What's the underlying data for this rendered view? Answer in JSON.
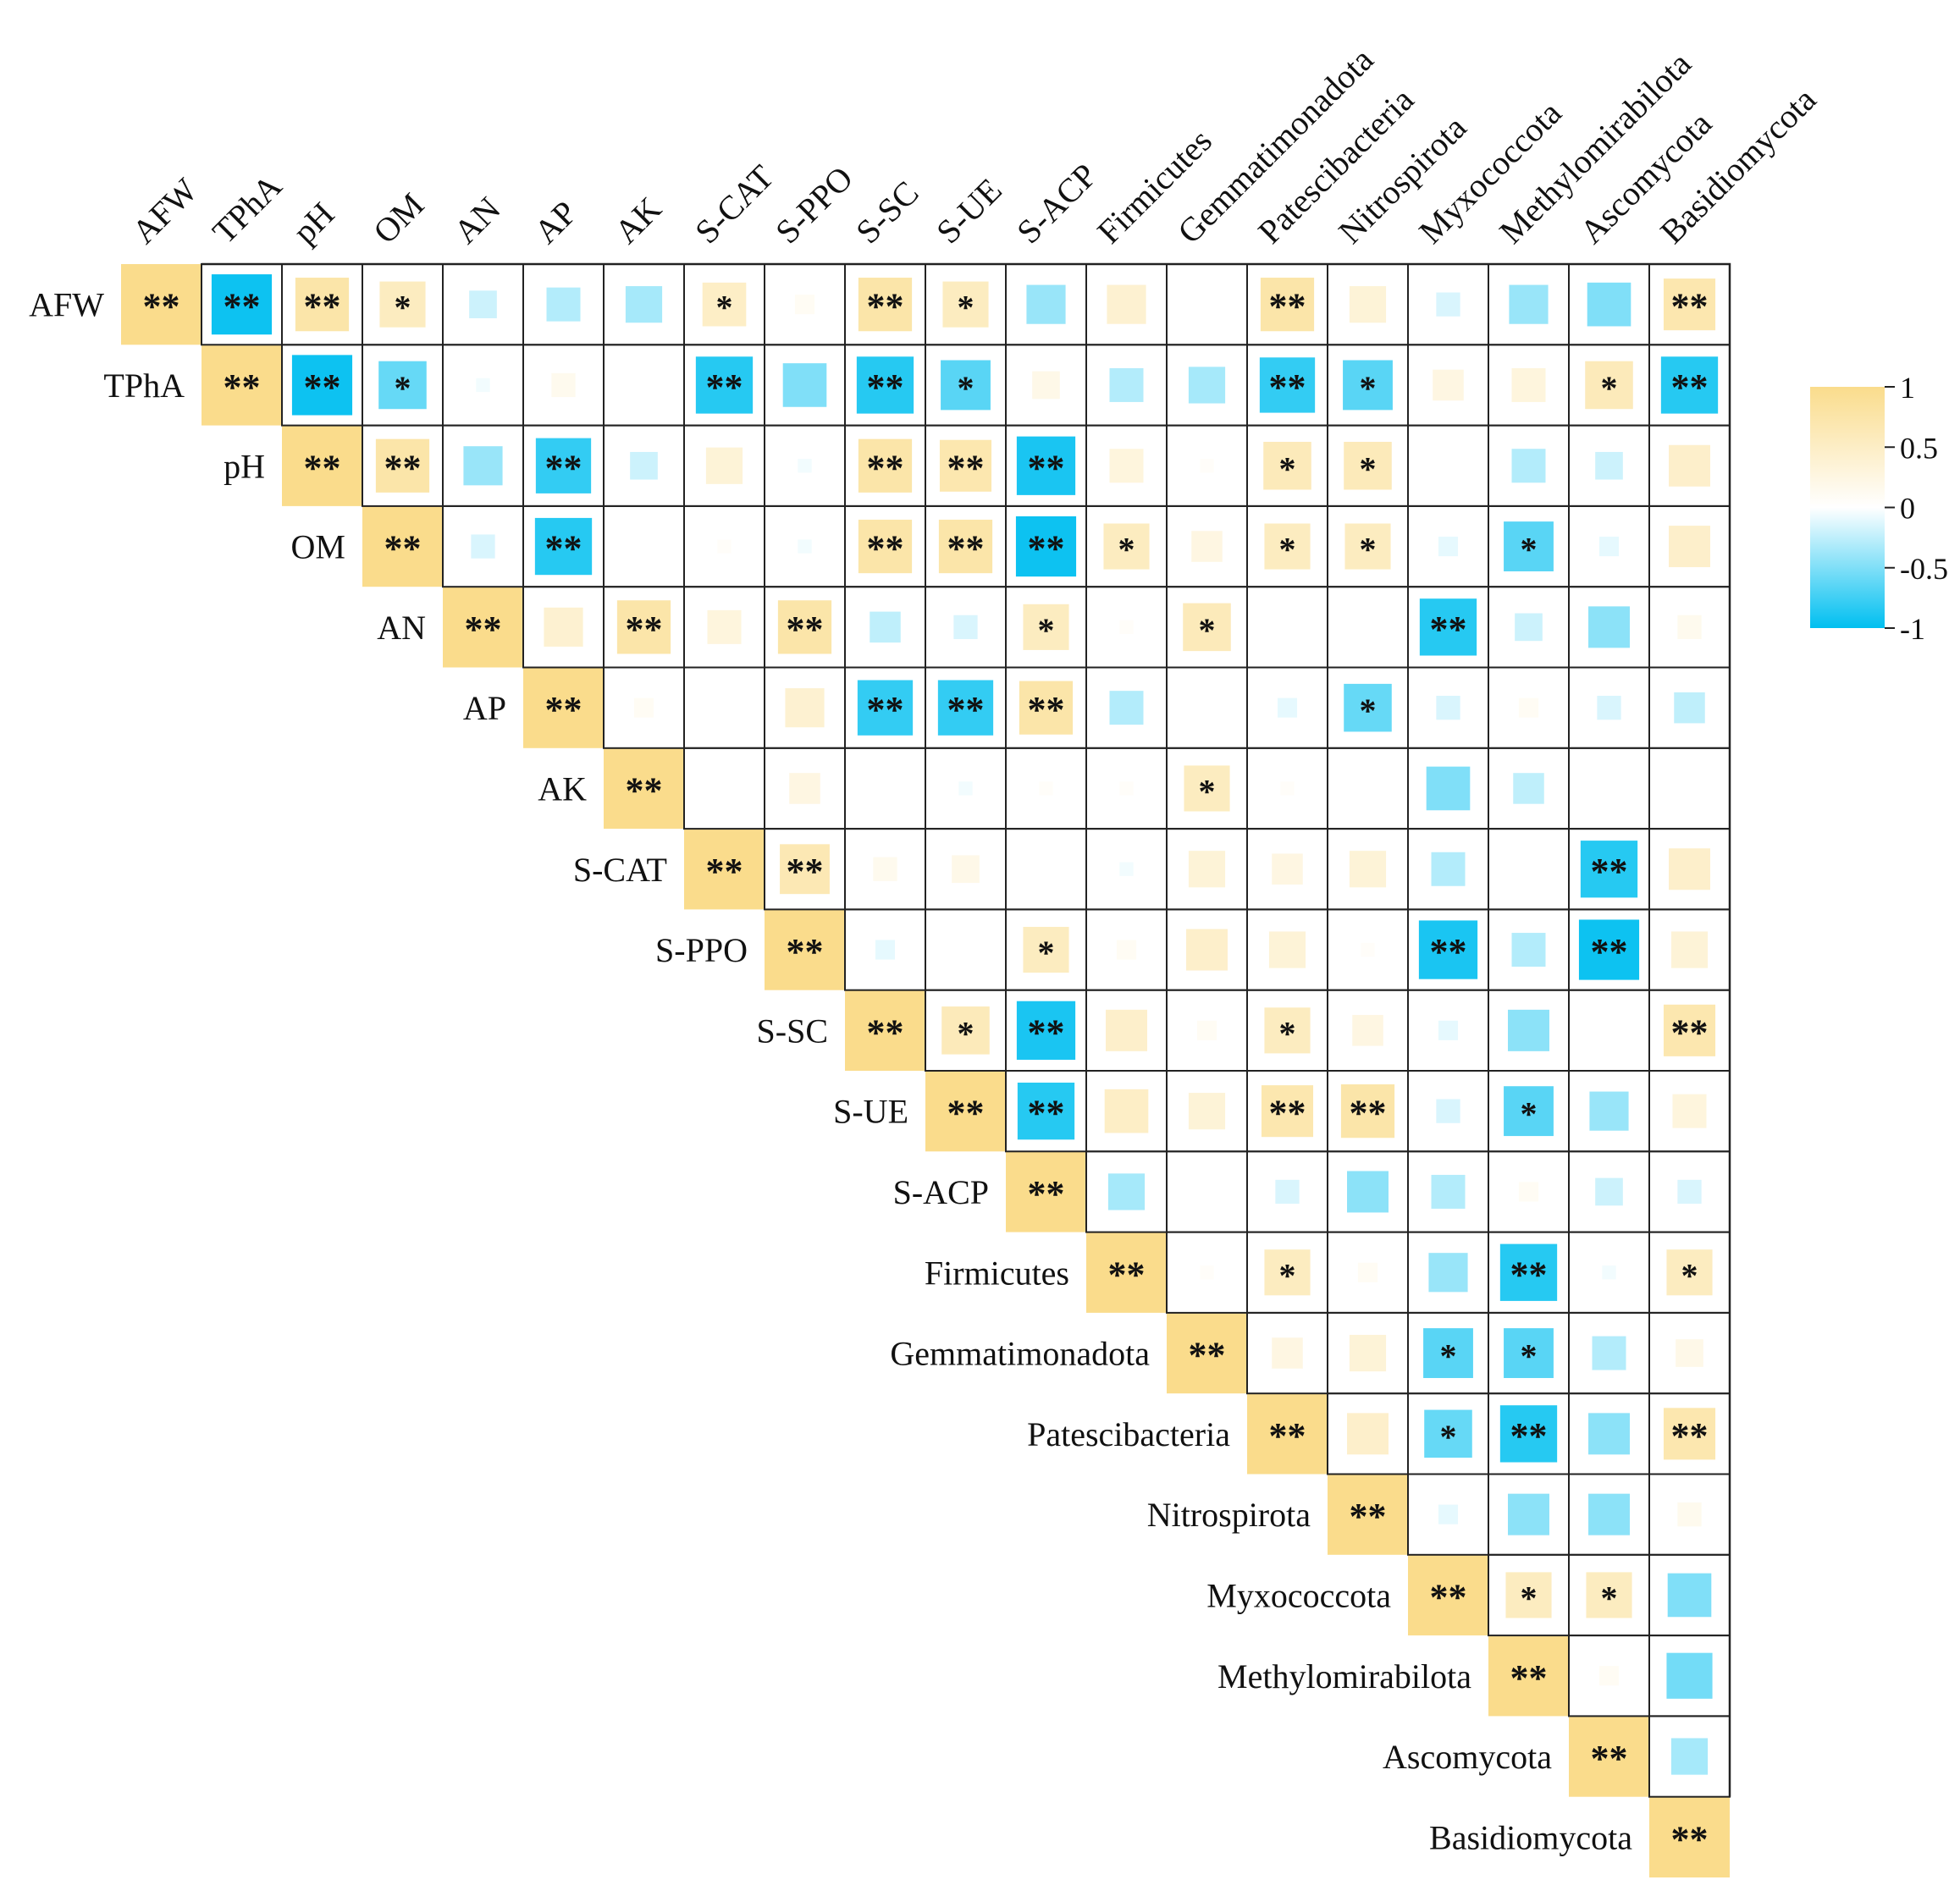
{
  "chart_data": {
    "type": "heatmap",
    "variant": "upper-triangle-correlation",
    "variables": [
      "AFW",
      "TPhA",
      "pH",
      "OM",
      "AN",
      "AP",
      "AK",
      "S-CAT",
      "S-PPO",
      "S-SC",
      "S-UE",
      "S-ACP",
      "Firmicutes",
      "Gemmatimonadota",
      "Patescibacteria",
      "Nitrospirota",
      "Myxococcota",
      "Methylomirabilota",
      "Ascomycota",
      "Basidiomycota"
    ],
    "cells": [
      [
        [
          "AFW",
          1,
          "**"
        ],
        [
          "TPhA",
          -0.95,
          "**"
        ],
        [
          "pH",
          0.75,
          "**"
        ],
        [
          "OM",
          0.55,
          "*"
        ],
        [
          "AN",
          -0.2,
          ""
        ],
        [
          "AP",
          -0.3,
          ""
        ],
        [
          "AK",
          -0.35,
          ""
        ],
        [
          "S-CAT",
          0.5,
          "*"
        ],
        [
          "S-PPO",
          0.1,
          ""
        ],
        [
          "S-SC",
          0.75,
          "**"
        ],
        [
          "S-UE",
          0.55,
          "*"
        ],
        [
          "S-ACP",
          -0.4,
          ""
        ],
        [
          "Firmicutes",
          0.4,
          ""
        ],
        [
          "Gemmatimonadota",
          0,
          ""
        ],
        [
          "Patescibacteria",
          0.75,
          "**"
        ],
        [
          "Nitrospirota",
          0.35,
          ""
        ],
        [
          "Myxococcota",
          -0.15,
          ""
        ],
        [
          "Methylomirabilota",
          -0.4,
          ""
        ],
        [
          "Ascomycota",
          -0.5,
          ""
        ],
        [
          "Basidiomycota",
          0.7,
          "**"
        ]
      ],
      [
        [
          "TPhA",
          1,
          "**"
        ],
        [
          "pH",
          -0.95,
          "**"
        ],
        [
          "OM",
          -0.6,
          "*"
        ],
        [
          "AN",
          -0.05,
          ""
        ],
        [
          "AP",
          0.15,
          ""
        ],
        [
          "AK",
          0,
          ""
        ],
        [
          "S-CAT",
          -0.85,
          "**"
        ],
        [
          "S-PPO",
          -0.5,
          ""
        ],
        [
          "S-SC",
          -0.85,
          "**"
        ],
        [
          "S-UE",
          -0.65,
          "*"
        ],
        [
          "S-ACP",
          0.2,
          ""
        ],
        [
          "Firmicutes",
          -0.3,
          ""
        ],
        [
          "Gemmatimonadota",
          -0.35,
          ""
        ],
        [
          "Patescibacteria",
          -0.8,
          "**"
        ],
        [
          "Nitrospirota",
          -0.65,
          "*"
        ],
        [
          "Myxococcota",
          0.25,
          ""
        ],
        [
          "Methylomirabilota",
          0.3,
          ""
        ],
        [
          "Ascomycota",
          0.6,
          "*"
        ],
        [
          "Basidiomycota",
          -0.85,
          "**"
        ]
      ],
      [
        [
          "pH",
          1,
          "**"
        ],
        [
          "OM",
          0.75,
          "**"
        ],
        [
          "AN",
          -0.4,
          ""
        ],
        [
          "AP",
          -0.8,
          "**"
        ],
        [
          "AK",
          -0.2,
          ""
        ],
        [
          "S-CAT",
          0.35,
          ""
        ],
        [
          "S-PPO",
          -0.05,
          ""
        ],
        [
          "S-SC",
          0.75,
          "**"
        ],
        [
          "S-UE",
          0.7,
          "**"
        ],
        [
          "S-ACP",
          -0.9,
          "**"
        ],
        [
          "Firmicutes",
          0.3,
          ""
        ],
        [
          "Gemmatimonadota",
          0.05,
          ""
        ],
        [
          "Patescibacteria",
          0.6,
          "*"
        ],
        [
          "Nitrospirota",
          0.6,
          "*"
        ],
        [
          "Myxococcota",
          0,
          ""
        ],
        [
          "Methylomirabilota",
          -0.3,
          ""
        ],
        [
          "Ascomycota",
          -0.2,
          ""
        ],
        [
          "Basidiomycota",
          0.45,
          ""
        ]
      ],
      [
        [
          "OM",
          1,
          "**"
        ],
        [
          "AN",
          -0.15,
          ""
        ],
        [
          "AP",
          -0.85,
          "**"
        ],
        [
          "AK",
          0,
          ""
        ],
        [
          "S-CAT",
          0.05,
          ""
        ],
        [
          "S-PPO",
          -0.05,
          ""
        ],
        [
          "S-SC",
          0.75,
          "**"
        ],
        [
          "S-UE",
          0.75,
          "**"
        ],
        [
          "S-ACP",
          -0.95,
          "**"
        ],
        [
          "Firmicutes",
          0.55,
          "*"
        ],
        [
          "Gemmatimonadota",
          0.25,
          ""
        ],
        [
          "Patescibacteria",
          0.55,
          "*"
        ],
        [
          "Nitrospirota",
          0.55,
          "*"
        ],
        [
          "Myxococcota",
          -0.1,
          ""
        ],
        [
          "Methylomirabilota",
          -0.65,
          "*"
        ],
        [
          "Ascomycota",
          -0.1,
          ""
        ],
        [
          "Basidiomycota",
          0.45,
          ""
        ]
      ],
      [
        [
          "AN",
          1,
          "**"
        ],
        [
          "AP",
          0.4,
          ""
        ],
        [
          "AK",
          0.75,
          "**"
        ],
        [
          "S-CAT",
          0.3,
          ""
        ],
        [
          "S-PPO",
          0.75,
          "**"
        ],
        [
          "S-SC",
          -0.25,
          ""
        ],
        [
          "S-UE",
          -0.15,
          ""
        ],
        [
          "S-ACP",
          0.55,
          "*"
        ],
        [
          "Firmicutes",
          0.05,
          ""
        ],
        [
          "Gemmatimonadota",
          0.6,
          "*"
        ],
        [
          "Patescibacteria",
          0,
          ""
        ],
        [
          "Nitrospirota",
          0,
          ""
        ],
        [
          "Myxococcota",
          -0.85,
          "**"
        ],
        [
          "Methylomirabilota",
          -0.2,
          ""
        ],
        [
          "Ascomycota",
          -0.45,
          ""
        ],
        [
          "Basidiomycota",
          0.15,
          ""
        ]
      ],
      [
        [
          "AP",
          1,
          "**"
        ],
        [
          "AK",
          0.1,
          ""
        ],
        [
          "S-CAT",
          0,
          ""
        ],
        [
          "S-PPO",
          0.4,
          ""
        ],
        [
          "S-SC",
          -0.8,
          "**"
        ],
        [
          "S-UE",
          -0.8,
          "**"
        ],
        [
          "S-ACP",
          0.75,
          "**"
        ],
        [
          "Firmicutes",
          -0.3,
          ""
        ],
        [
          "Gemmatimonadota",
          0,
          ""
        ],
        [
          "Patescibacteria",
          -0.1,
          ""
        ],
        [
          "Nitrospirota",
          -0.6,
          "*"
        ],
        [
          "Myxococcota",
          -0.15,
          ""
        ],
        [
          "Methylomirabilota",
          0.1,
          ""
        ],
        [
          "Ascomycota",
          -0.15,
          ""
        ],
        [
          "Basidiomycota",
          -0.25,
          ""
        ]
      ],
      [
        [
          "AK",
          1,
          "**"
        ],
        [
          "S-CAT",
          0,
          ""
        ],
        [
          "S-PPO",
          0.25,
          ""
        ],
        [
          "S-SC",
          0,
          ""
        ],
        [
          "S-UE",
          -0.05,
          ""
        ],
        [
          "S-ACP",
          0.05,
          ""
        ],
        [
          "Firmicutes",
          0.05,
          ""
        ],
        [
          "Gemmatimonadota",
          0.55,
          "*"
        ],
        [
          "Patescibacteria",
          0.05,
          ""
        ],
        [
          "Nitrospirota",
          0,
          ""
        ],
        [
          "Myxococcota",
          -0.5,
          ""
        ],
        [
          "Methylomirabilota",
          -0.25,
          ""
        ],
        [
          "Ascomycota",
          0,
          ""
        ],
        [
          "Basidiomycota",
          0,
          ""
        ]
      ],
      [
        [
          "S-CAT",
          1,
          "**"
        ],
        [
          "S-PPO",
          0.65,
          "**"
        ],
        [
          "S-SC",
          0.15,
          ""
        ],
        [
          "S-UE",
          0.2,
          ""
        ],
        [
          "S-ACP",
          0,
          ""
        ],
        [
          "Firmicutes",
          -0.05,
          ""
        ],
        [
          "Gemmatimonadota",
          0.35,
          ""
        ],
        [
          "Patescibacteria",
          0.25,
          ""
        ],
        [
          "Nitrospirota",
          0.35,
          ""
        ],
        [
          "Myxococcota",
          -0.3,
          ""
        ],
        [
          "Methylomirabilota",
          0,
          ""
        ],
        [
          "Ascomycota",
          -0.85,
          "**"
        ],
        [
          "Basidiomycota",
          0.45,
          ""
        ]
      ],
      [
        [
          "S-PPO",
          1,
          "**"
        ],
        [
          "S-SC",
          -0.1,
          ""
        ],
        [
          "S-UE",
          0,
          ""
        ],
        [
          "S-ACP",
          0.55,
          "*"
        ],
        [
          "Firmicutes",
          0.1,
          ""
        ],
        [
          "Gemmatimonadota",
          0.45,
          ""
        ],
        [
          "Patescibacteria",
          0.35,
          ""
        ],
        [
          "Nitrospirota",
          0.05,
          ""
        ],
        [
          "Myxococcota",
          -0.9,
          "**"
        ],
        [
          "Methylomirabilota",
          -0.3,
          ""
        ],
        [
          "Ascomycota",
          -0.95,
          "**"
        ],
        [
          "Basidiomycota",
          0.35,
          ""
        ]
      ],
      [
        [
          "S-SC",
          1,
          "**"
        ],
        [
          "S-UE",
          0.6,
          "*"
        ],
        [
          "S-ACP",
          -0.9,
          "**"
        ],
        [
          "Firmicutes",
          0.45,
          ""
        ],
        [
          "Gemmatimonadota",
          0.1,
          ""
        ],
        [
          "Patescibacteria",
          0.55,
          "*"
        ],
        [
          "Nitrospirota",
          0.25,
          ""
        ],
        [
          "Myxococcota",
          -0.1,
          ""
        ],
        [
          "Methylomirabilota",
          -0.45,
          ""
        ],
        [
          "Ascomycota",
          0,
          ""
        ],
        [
          "Basidiomycota",
          0.7,
          "**"
        ]
      ],
      [
        [
          "S-UE",
          1,
          "**"
        ],
        [
          "S-ACP",
          -0.85,
          "**"
        ],
        [
          "Firmicutes",
          0.5,
          ""
        ],
        [
          "Gemmatimonadota",
          0.35,
          ""
        ],
        [
          "Patescibacteria",
          0.7,
          "**"
        ],
        [
          "Nitrospirota",
          0.75,
          "**"
        ],
        [
          "Myxococcota",
          -0.15,
          ""
        ],
        [
          "Methylomirabilota",
          -0.65,
          "*"
        ],
        [
          "Ascomycota",
          -0.4,
          ""
        ],
        [
          "Basidiomycota",
          0.3,
          ""
        ]
      ],
      [
        [
          "S-ACP",
          1,
          "**"
        ],
        [
          "Firmicutes",
          -0.35,
          ""
        ],
        [
          "Gemmatimonadota",
          0,
          ""
        ],
        [
          "Patescibacteria",
          -0.15,
          ""
        ],
        [
          "Nitrospirota",
          -0.45,
          ""
        ],
        [
          "Myxococcota",
          -0.3,
          ""
        ],
        [
          "Methylomirabilota",
          0.1,
          ""
        ],
        [
          "Ascomycota",
          -0.2,
          ""
        ],
        [
          "Basidiomycota",
          -0.15,
          ""
        ]
      ],
      [
        [
          "Firmicutes",
          1,
          "**"
        ],
        [
          "Gemmatimonadota",
          0.05,
          ""
        ],
        [
          "Patescibacteria",
          0.55,
          "*"
        ],
        [
          "Nitrospirota",
          0.1,
          ""
        ],
        [
          "Myxococcota",
          -0.4,
          ""
        ],
        [
          "Methylomirabilota",
          -0.85,
          "**"
        ],
        [
          "Ascomycota",
          -0.05,
          ""
        ],
        [
          "Basidiomycota",
          0.55,
          "*"
        ]
      ],
      [
        [
          "Gemmatimonadota",
          1,
          "**"
        ],
        [
          "Patescibacteria",
          0.25,
          ""
        ],
        [
          "Nitrospirota",
          0.35,
          ""
        ],
        [
          "Myxococcota",
          -0.65,
          "*"
        ],
        [
          "Methylomirabilota",
          -0.65,
          "*"
        ],
        [
          "Ascomycota",
          -0.3,
          ""
        ],
        [
          "Basidiomycota",
          0.2,
          ""
        ]
      ],
      [
        [
          "Patescibacteria",
          1,
          "**"
        ],
        [
          "Nitrospirota",
          0.45,
          ""
        ],
        [
          "Myxococcota",
          -0.6,
          "*"
        ],
        [
          "Methylomirabilota",
          -0.85,
          "**"
        ],
        [
          "Ascomycota",
          -0.45,
          ""
        ],
        [
          "Basidiomycota",
          0.7,
          "**"
        ]
      ],
      [
        [
          "Nitrospirota",
          1,
          "**"
        ],
        [
          "Myxococcota",
          -0.1,
          ""
        ],
        [
          "Methylomirabilota",
          -0.45,
          ""
        ],
        [
          "Ascomycota",
          -0.45,
          ""
        ],
        [
          "Basidiomycota",
          0.15,
          ""
        ]
      ],
      [
        [
          "Myxococcota",
          1,
          "**"
        ],
        [
          "Methylomirabilota",
          0.55,
          "*"
        ],
        [
          "Ascomycota",
          0.55,
          "*"
        ],
        [
          "Basidiomycota",
          -0.5,
          ""
        ]
      ],
      [
        [
          "Methylomirabilota",
          1,
          "**"
        ],
        [
          "Ascomycota",
          0.1,
          ""
        ],
        [
          "Basidiomycota",
          -0.55,
          ""
        ]
      ],
      [
        [
          "Ascomycota",
          1,
          "**"
        ],
        [
          "Basidiomycota",
          -0.35,
          ""
        ]
      ],
      [
        [
          "Basidiomycota",
          1,
          "**"
        ]
      ]
    ],
    "colorbar": {
      "ticks": [
        "1",
        "0.5",
        "0",
        "-0.5",
        "-1"
      ],
      "positive_color": "#FADC8C",
      "negative_color": "#00BFF0",
      "zero_color": "#FFFFFF"
    }
  }
}
